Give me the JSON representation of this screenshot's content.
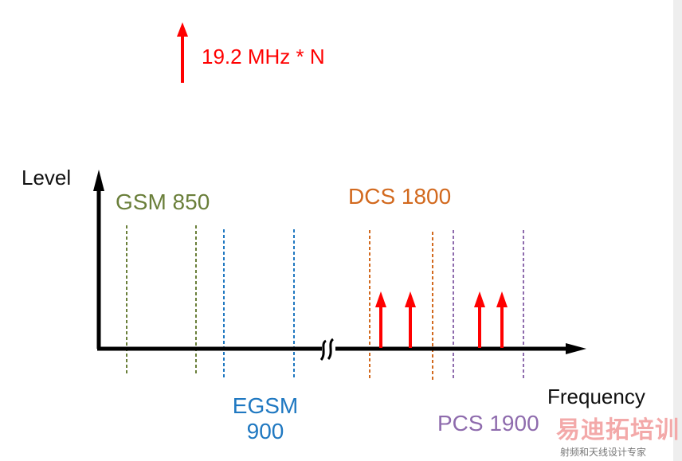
{
  "legend": {
    "label": "19.2 MHz * N"
  },
  "axes": {
    "y_label": "Level",
    "x_label": "Frequency"
  },
  "bands": [
    {
      "key": "gsm850",
      "label": "GSM 850",
      "color": "#6a7f3a"
    },
    {
      "key": "egsm900",
      "label": "EGSM 900",
      "color": "#1f78c1"
    },
    {
      "key": "dcs1800",
      "label": "DCS 1800",
      "color": "#d2691e"
    },
    {
      "key": "pcs1900",
      "label": "PCS 1900",
      "color": "#8e6bad"
    }
  ],
  "harmonic_color": "#ff0000",
  "axis_color": "#000000",
  "watermark": {
    "brand": "易迪拓培训",
    "tagline": "射频和天线设计专家"
  }
}
